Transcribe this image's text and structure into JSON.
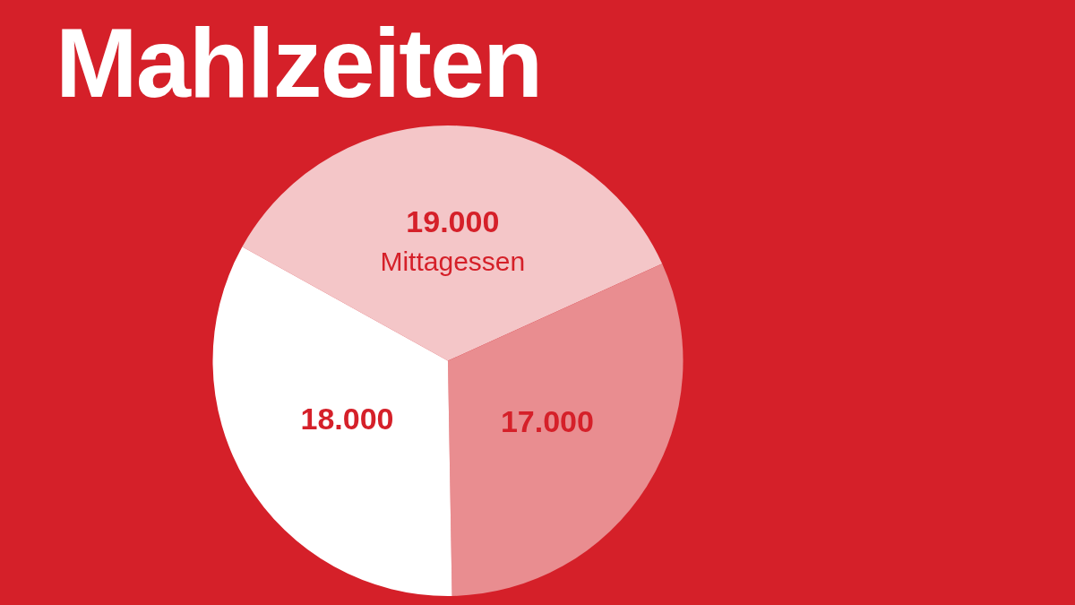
{
  "chart_data": {
    "type": "pie",
    "title": "Mahlzeiten",
    "categories": [
      "Mittagessen",
      null,
      null
    ],
    "values": [
      19000,
      17000,
      18000
    ],
    "colors": [
      "#f4c6c8",
      "#e98d90",
      "#ffffff"
    ],
    "value_labels": [
      "19.000",
      "17.000",
      "18.000"
    ],
    "legend": false
  }
}
